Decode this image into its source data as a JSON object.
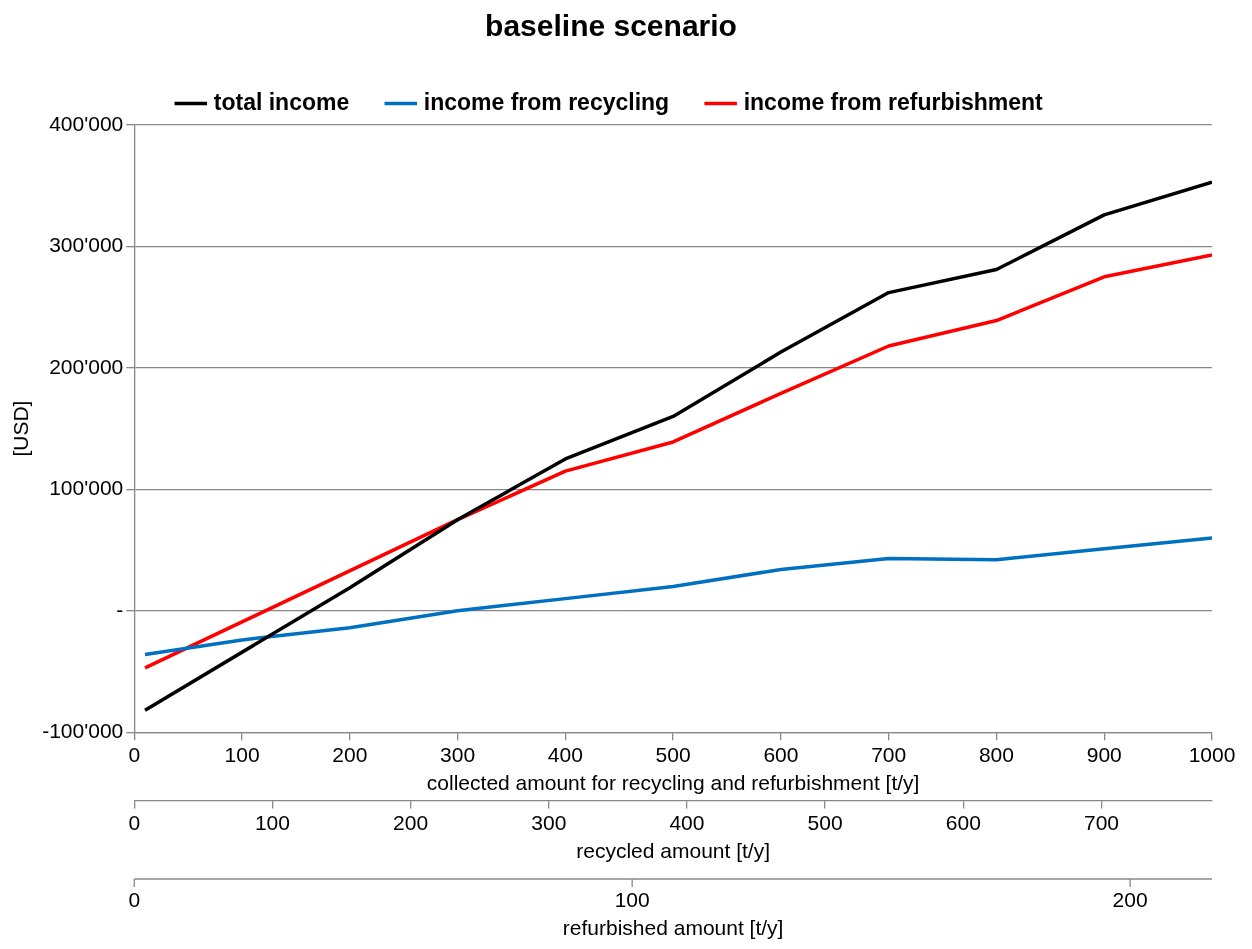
{
  "chart_data": {
    "type": "line",
    "title": "baseline scenario",
    "ylabel": "[USD]",
    "xlabel": "collected amount for recycling and refurbishment [t/y]",
    "x2label": "recycled amount [t/y]",
    "xlim": [
      0,
      1000
    ],
    "xticks": [
      0,
      100,
      200,
      300,
      400,
      500,
      600,
      700,
      800,
      900,
      1000
    ],
    "x2lim": [
      0,
      780
    ],
    "x2ticks": [
      0,
      100,
      200,
      300,
      400,
      500,
      600,
      700
    ],
    "annotations": [
      "0",
      "100",
      "200",
      "refurbished amount [t/y]"
    ],
    "ylim": [
      -100000,
      400000
    ],
    "yticks": [
      {
        "value": -100000,
        "label": "-100'000"
      },
      {
        "value": 0,
        "label": "-"
      },
      {
        "value": 100000,
        "label": "100'000"
      },
      {
        "value": 200000,
        "label": "200'000"
      },
      {
        "value": 300000,
        "label": "300'000"
      },
      {
        "value": 400000,
        "label": "400'000"
      }
    ],
    "grid": "y",
    "legend": "top",
    "marker": "none",
    "line_style": "solid",
    "series": [
      {
        "name": "total income",
        "color": "#000000",
        "x": [
          10,
          200,
          300,
          400,
          500,
          600,
          700,
          800,
          900,
          1000
        ],
        "values": [
          -82000,
          19000,
          75000,
          125000,
          160000,
          213000,
          262000,
          281000,
          326000,
          353000
        ]
      },
      {
        "name": "income from recycling",
        "color": "#0070c0",
        "x": [
          10,
          100,
          200,
          300,
          400,
          500,
          600,
          700,
          800,
          900,
          1000
        ],
        "values": [
          -36000,
          -24000,
          -14000,
          0,
          10000,
          20000,
          34000,
          43000,
          42000,
          51000,
          60000
        ]
      },
      {
        "name": "income from refurbishment",
        "color": "#ff0000",
        "x": [
          10,
          300,
          400,
          500,
          600,
          700,
          800,
          900,
          1000
        ],
        "values": [
          -47000,
          75000,
          115000,
          139000,
          179000,
          218000,
          239000,
          275000,
          293000
        ]
      }
    ]
  }
}
